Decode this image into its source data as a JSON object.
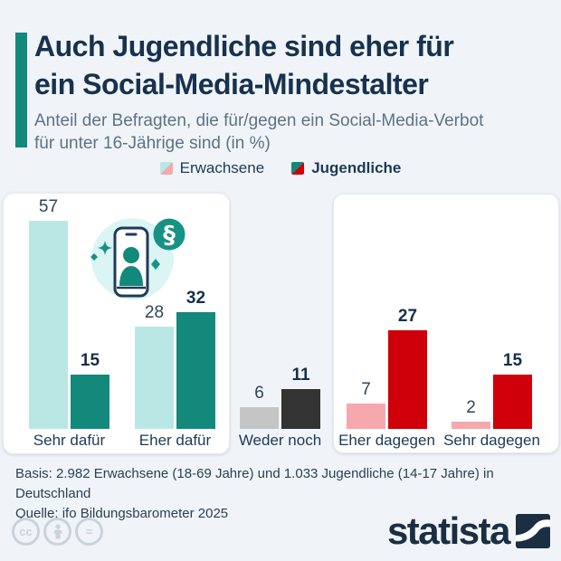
{
  "header": {
    "title_line1": "Auch Jugendliche sind eher für",
    "title_line2": "ein Social-Media-Mindestalter",
    "subtitle_line1": "Anteil der Befragten, die für/gegen ein Social-Media-Verbot",
    "subtitle_line2": "für unter 16-Jährige sind (in %)"
  },
  "legend": {
    "items": [
      {
        "label": "Erwachsene"
      },
      {
        "label": "Jugendliche"
      }
    ]
  },
  "chart_data": {
    "type": "bar",
    "title": "Anteil der Befragten, die für/gegen ein Social-Media-Verbot für unter 16-Jährige sind (in %)",
    "categories": [
      "Sehr dafür",
      "Eher dafür",
      "Weder noch",
      "Eher dagegen",
      "Sehr dagegen"
    ],
    "series": [
      {
        "name": "Erwachsene",
        "values": [
          57,
          28,
          6,
          7,
          2
        ]
      },
      {
        "name": "Jugendliche",
        "values": [
          15,
          32,
          11,
          27,
          15
        ]
      }
    ],
    "unit": "%",
    "ylim": [
      0,
      60
    ],
    "grid": false,
    "legend_position": "top",
    "category_palette": [
      "for",
      "for",
      "neutral",
      "against",
      "against"
    ],
    "colors": {
      "for": {
        "erwachsene": "#b9e8e4",
        "jugendliche": "#13897b"
      },
      "neutral": {
        "erwachsene": "#c5c5c5",
        "jugendliche": "#333333"
      },
      "against": {
        "erwachsene": "#f5a8ad",
        "jugendliche": "#cf0009"
      },
      "accent": "#13897b",
      "title_text": "#17324e",
      "subtitle_text": "#5d7285"
    }
  },
  "illustration": {
    "name": "smartphone-with-user-and-paragraph-law-symbol",
    "paragraph_symbol": "§"
  },
  "footer": {
    "basis": "Basis: 2.982 Erwachsene (18-69 Jahre) und 1.033 Jugendliche (14-17 Jahre) in Deutschland",
    "quelle": "Quelle: ifo Bildungsbarometer 2025"
  },
  "branding": {
    "logo_text": "statista",
    "license": {
      "cc": "cc",
      "nd": "="
    }
  }
}
